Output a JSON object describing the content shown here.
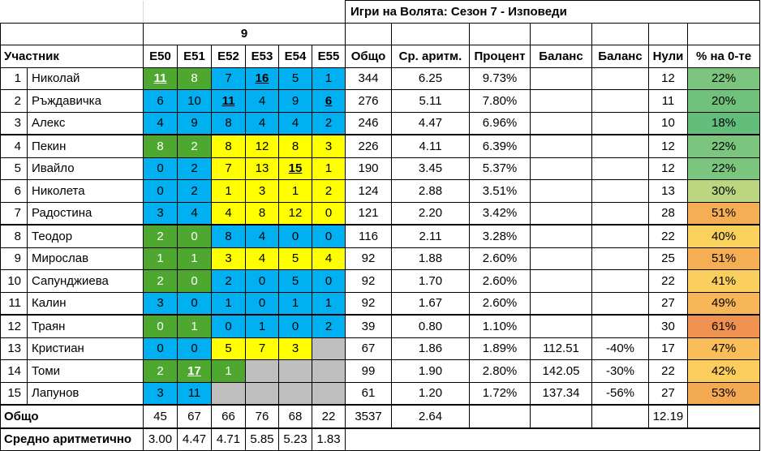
{
  "window": {
    "title": "Игри на Волята: Сезон 7 - Изповеди"
  },
  "table": {
    "group_label": "9",
    "headers": {
      "participant": "Участник",
      "episodes": [
        "E50",
        "E51",
        "E52",
        "E53",
        "E54",
        "E55"
      ],
      "stats": [
        "Общо",
        "Ср. аритм.",
        "Процент",
        "Баланс",
        "Баланс",
        "Нули",
        "% на 0-те"
      ]
    },
    "cell_colors": {
      "green": "#4EA72E",
      "cyan": "#00B0F0",
      "yellow": "#FFFF00",
      "gray": "#BFBFBF"
    },
    "rows": [
      {
        "num": "1",
        "name": "Николай",
        "episodes": [
          {
            "v": "11",
            "bg": "green",
            "mark": true
          },
          {
            "v": "8",
            "bg": "green"
          },
          {
            "v": "7",
            "bg": "cyan"
          },
          {
            "v": "16",
            "bg": "cyan",
            "mark": true
          },
          {
            "v": "5",
            "bg": "cyan"
          },
          {
            "v": "1",
            "bg": "cyan"
          }
        ],
        "total": "344",
        "avg": "6.25",
        "percent": "9.73%",
        "balance1": "",
        "balance2": "",
        "zeros": "12",
        "zero_pct": "22%",
        "zero_pct_bg": "#7CC57E"
      },
      {
        "num": "2",
        "name": "Ръждавичка",
        "episodes": [
          {
            "v": "6",
            "bg": "cyan"
          },
          {
            "v": "10",
            "bg": "cyan"
          },
          {
            "v": "11",
            "bg": "cyan",
            "mark": true
          },
          {
            "v": "4",
            "bg": "cyan"
          },
          {
            "v": "9",
            "bg": "cyan"
          },
          {
            "v": "6",
            "bg": "cyan",
            "mark": true
          }
        ],
        "total": "276",
        "avg": "5.11",
        "percent": "7.80%",
        "balance1": "",
        "balance2": "",
        "zeros": "11",
        "zero_pct": "20%",
        "zero_pct_bg": "#70C17C"
      },
      {
        "num": "3",
        "name": "Алекс",
        "episodes": [
          {
            "v": "4",
            "bg": "cyan"
          },
          {
            "v": "9",
            "bg": "cyan"
          },
          {
            "v": "8",
            "bg": "cyan"
          },
          {
            "v": "4",
            "bg": "cyan"
          },
          {
            "v": "4",
            "bg": "cyan"
          },
          {
            "v": "2",
            "bg": "cyan"
          }
        ],
        "total": "246",
        "avg": "4.47",
        "percent": "6.96%",
        "balance1": "",
        "balance2": "",
        "zeros": "10",
        "zero_pct": "18%",
        "zero_pct_bg": "#63BE7B"
      },
      {
        "num": "4",
        "name": "Пекин",
        "episodes": [
          {
            "v": "8",
            "bg": "green"
          },
          {
            "v": "2",
            "bg": "green"
          },
          {
            "v": "8",
            "bg": "yellow"
          },
          {
            "v": "12",
            "bg": "yellow"
          },
          {
            "v": "8",
            "bg": "yellow"
          },
          {
            "v": "3",
            "bg": "yellow"
          }
        ],
        "total": "226",
        "avg": "4.11",
        "percent": "6.39%",
        "balance1": "",
        "balance2": "",
        "zeros": "12",
        "zero_pct": "22%",
        "zero_pct_bg": "#7CC57E"
      },
      {
        "num": "5",
        "name": "Ивайло",
        "episodes": [
          {
            "v": "0",
            "bg": "cyan"
          },
          {
            "v": "2",
            "bg": "cyan"
          },
          {
            "v": "7",
            "bg": "yellow"
          },
          {
            "v": "13",
            "bg": "yellow"
          },
          {
            "v": "15",
            "bg": "yellow",
            "mark": true
          },
          {
            "v": "1",
            "bg": "yellow"
          }
        ],
        "total": "190",
        "avg": "3.45",
        "percent": "5.37%",
        "balance1": "",
        "balance2": "",
        "zeros": "12",
        "zero_pct": "22%",
        "zero_pct_bg": "#7CC57E"
      },
      {
        "num": "6",
        "name": "Николета",
        "episodes": [
          {
            "v": "0",
            "bg": "cyan"
          },
          {
            "v": "2",
            "bg": "cyan"
          },
          {
            "v": "1",
            "bg": "yellow"
          },
          {
            "v": "3",
            "bg": "yellow"
          },
          {
            "v": "1",
            "bg": "yellow"
          },
          {
            "v": "2",
            "bg": "yellow"
          }
        ],
        "total": "124",
        "avg": "2.88",
        "percent": "3.51%",
        "balance1": "",
        "balance2": "",
        "zeros": "13",
        "zero_pct": "30%",
        "zero_pct_bg": "#BCD680"
      },
      {
        "num": "7",
        "name": "Радостина",
        "episodes": [
          {
            "v": "3",
            "bg": "cyan"
          },
          {
            "v": "4",
            "bg": "cyan"
          },
          {
            "v": "4",
            "bg": "yellow"
          },
          {
            "v": "8",
            "bg": "yellow"
          },
          {
            "v": "12",
            "bg": "yellow"
          },
          {
            "v": "0",
            "bg": "yellow"
          }
        ],
        "total": "121",
        "avg": "2.20",
        "percent": "3.42%",
        "balance1": "",
        "balance2": "",
        "zeros": "28",
        "zero_pct": "51%",
        "zero_pct_bg": "#F5AE54"
      },
      {
        "num": "8",
        "name": "Теодор",
        "episodes": [
          {
            "v": "2",
            "bg": "green"
          },
          {
            "v": "0",
            "bg": "green"
          },
          {
            "v": "8",
            "bg": "cyan"
          },
          {
            "v": "4",
            "bg": "cyan"
          },
          {
            "v": "0",
            "bg": "cyan"
          },
          {
            "v": "0",
            "bg": "cyan"
          }
        ],
        "total": "116",
        "avg": "2.11",
        "percent": "3.28%",
        "balance1": "",
        "balance2": "",
        "zeros": "22",
        "zero_pct": "40%",
        "zero_pct_bg": "#FBD15E"
      },
      {
        "num": "9",
        "name": "Мирослав",
        "episodes": [
          {
            "v": "1",
            "bg": "green"
          },
          {
            "v": "1",
            "bg": "green"
          },
          {
            "v": "3",
            "bg": "yellow"
          },
          {
            "v": "4",
            "bg": "yellow"
          },
          {
            "v": "5",
            "bg": "yellow"
          },
          {
            "v": "4",
            "bg": "yellow"
          }
        ],
        "total": "92",
        "avg": "1.88",
        "percent": "2.60%",
        "balance1": "",
        "balance2": "",
        "zeros": "25",
        "zero_pct": "51%",
        "zero_pct_bg": "#F5AE54"
      },
      {
        "num": "10",
        "name": "Сапунджиева",
        "episodes": [
          {
            "v": "2",
            "bg": "green"
          },
          {
            "v": "0",
            "bg": "green"
          },
          {
            "v": "2",
            "bg": "cyan"
          },
          {
            "v": "0",
            "bg": "cyan"
          },
          {
            "v": "5",
            "bg": "cyan"
          },
          {
            "v": "0",
            "bg": "cyan"
          }
        ],
        "total": "92",
        "avg": "1.70",
        "percent": "2.60%",
        "balance1": "",
        "balance2": "",
        "zeros": "22",
        "zero_pct": "41%",
        "zero_pct_bg": "#FACF5D"
      },
      {
        "num": "11",
        "name": "Калин",
        "episodes": [
          {
            "v": "3",
            "bg": "cyan"
          },
          {
            "v": "0",
            "bg": "cyan"
          },
          {
            "v": "1",
            "bg": "cyan"
          },
          {
            "v": "0",
            "bg": "cyan"
          },
          {
            "v": "1",
            "bg": "cyan"
          },
          {
            "v": "1",
            "bg": "cyan"
          }
        ],
        "total": "92",
        "avg": "1.67",
        "percent": "2.60%",
        "balance1": "",
        "balance2": "",
        "zeros": "27",
        "zero_pct": "49%",
        "zero_pct_bg": "#F7B657"
      },
      {
        "num": "12",
        "name": "Траян",
        "episodes": [
          {
            "v": "0",
            "bg": "green"
          },
          {
            "v": "1",
            "bg": "green"
          },
          {
            "v": "0",
            "bg": "cyan"
          },
          {
            "v": "1",
            "bg": "cyan"
          },
          {
            "v": "0",
            "bg": "cyan"
          },
          {
            "v": "2",
            "bg": "cyan"
          }
        ],
        "total": "39",
        "avg": "0.80",
        "percent": "1.10%",
        "balance1": "",
        "balance2": "",
        "zeros": "30",
        "zero_pct": "61%",
        "zero_pct_bg": "#EF9150"
      },
      {
        "num": "13",
        "name": "Кристиан",
        "episodes": [
          {
            "v": "0",
            "bg": "cyan"
          },
          {
            "v": "0",
            "bg": "cyan"
          },
          {
            "v": "5",
            "bg": "yellow"
          },
          {
            "v": "7",
            "bg": "yellow"
          },
          {
            "v": "3",
            "bg": "yellow"
          },
          {
            "v": "",
            "bg": "gray"
          }
        ],
        "total": "67",
        "avg": "1.86",
        "percent": "1.89%",
        "balance1": "112.51",
        "balance2": "-40%",
        "zeros": "17",
        "zero_pct": "47%",
        "zero_pct_bg": "#F9BE59"
      },
      {
        "num": "14",
        "name": "Томи",
        "episodes": [
          {
            "v": "2",
            "bg": "green"
          },
          {
            "v": "17",
            "bg": "green",
            "mark": true
          },
          {
            "v": "1",
            "bg": "green"
          },
          {
            "v": "",
            "bg": "gray"
          },
          {
            "v": "",
            "bg": "gray"
          },
          {
            "v": "",
            "bg": "gray"
          }
        ],
        "total": "99",
        "avg": "1.90",
        "percent": "2.80%",
        "balance1": "142.05",
        "balance2": "-30%",
        "zeros": "22",
        "zero_pct": "42%",
        "zero_pct_bg": "#FACD5C"
      },
      {
        "num": "15",
        "name": "Лапунов",
        "episodes": [
          {
            "v": "3",
            "bg": "cyan"
          },
          {
            "v": "11",
            "bg": "cyan"
          },
          {
            "v": "",
            "bg": "gray"
          },
          {
            "v": "",
            "bg": "gray"
          },
          {
            "v": "",
            "bg": "gray"
          },
          {
            "v": "",
            "bg": "gray"
          }
        ],
        "total": "61",
        "avg": "1.20",
        "percent": "1.72%",
        "balance1": "137.34",
        "balance2": "-56%",
        "zeros": "27",
        "zero_pct": "53%",
        "zero_pct_bg": "#F4A953"
      }
    ],
    "totals_row": {
      "label": "Общо",
      "episodes": [
        "45",
        "67",
        "66",
        "76",
        "68",
        "22"
      ],
      "total": "3537",
      "avg": "2.64",
      "percent": "",
      "balance1": "",
      "balance2": "",
      "zeros": "12.19",
      "zero_pct": ""
    },
    "avg_row": {
      "label": "Средно аритметично",
      "episodes": [
        "3.00",
        "4.47",
        "4.71",
        "5.85",
        "5.23",
        "1.83"
      ]
    }
  }
}
